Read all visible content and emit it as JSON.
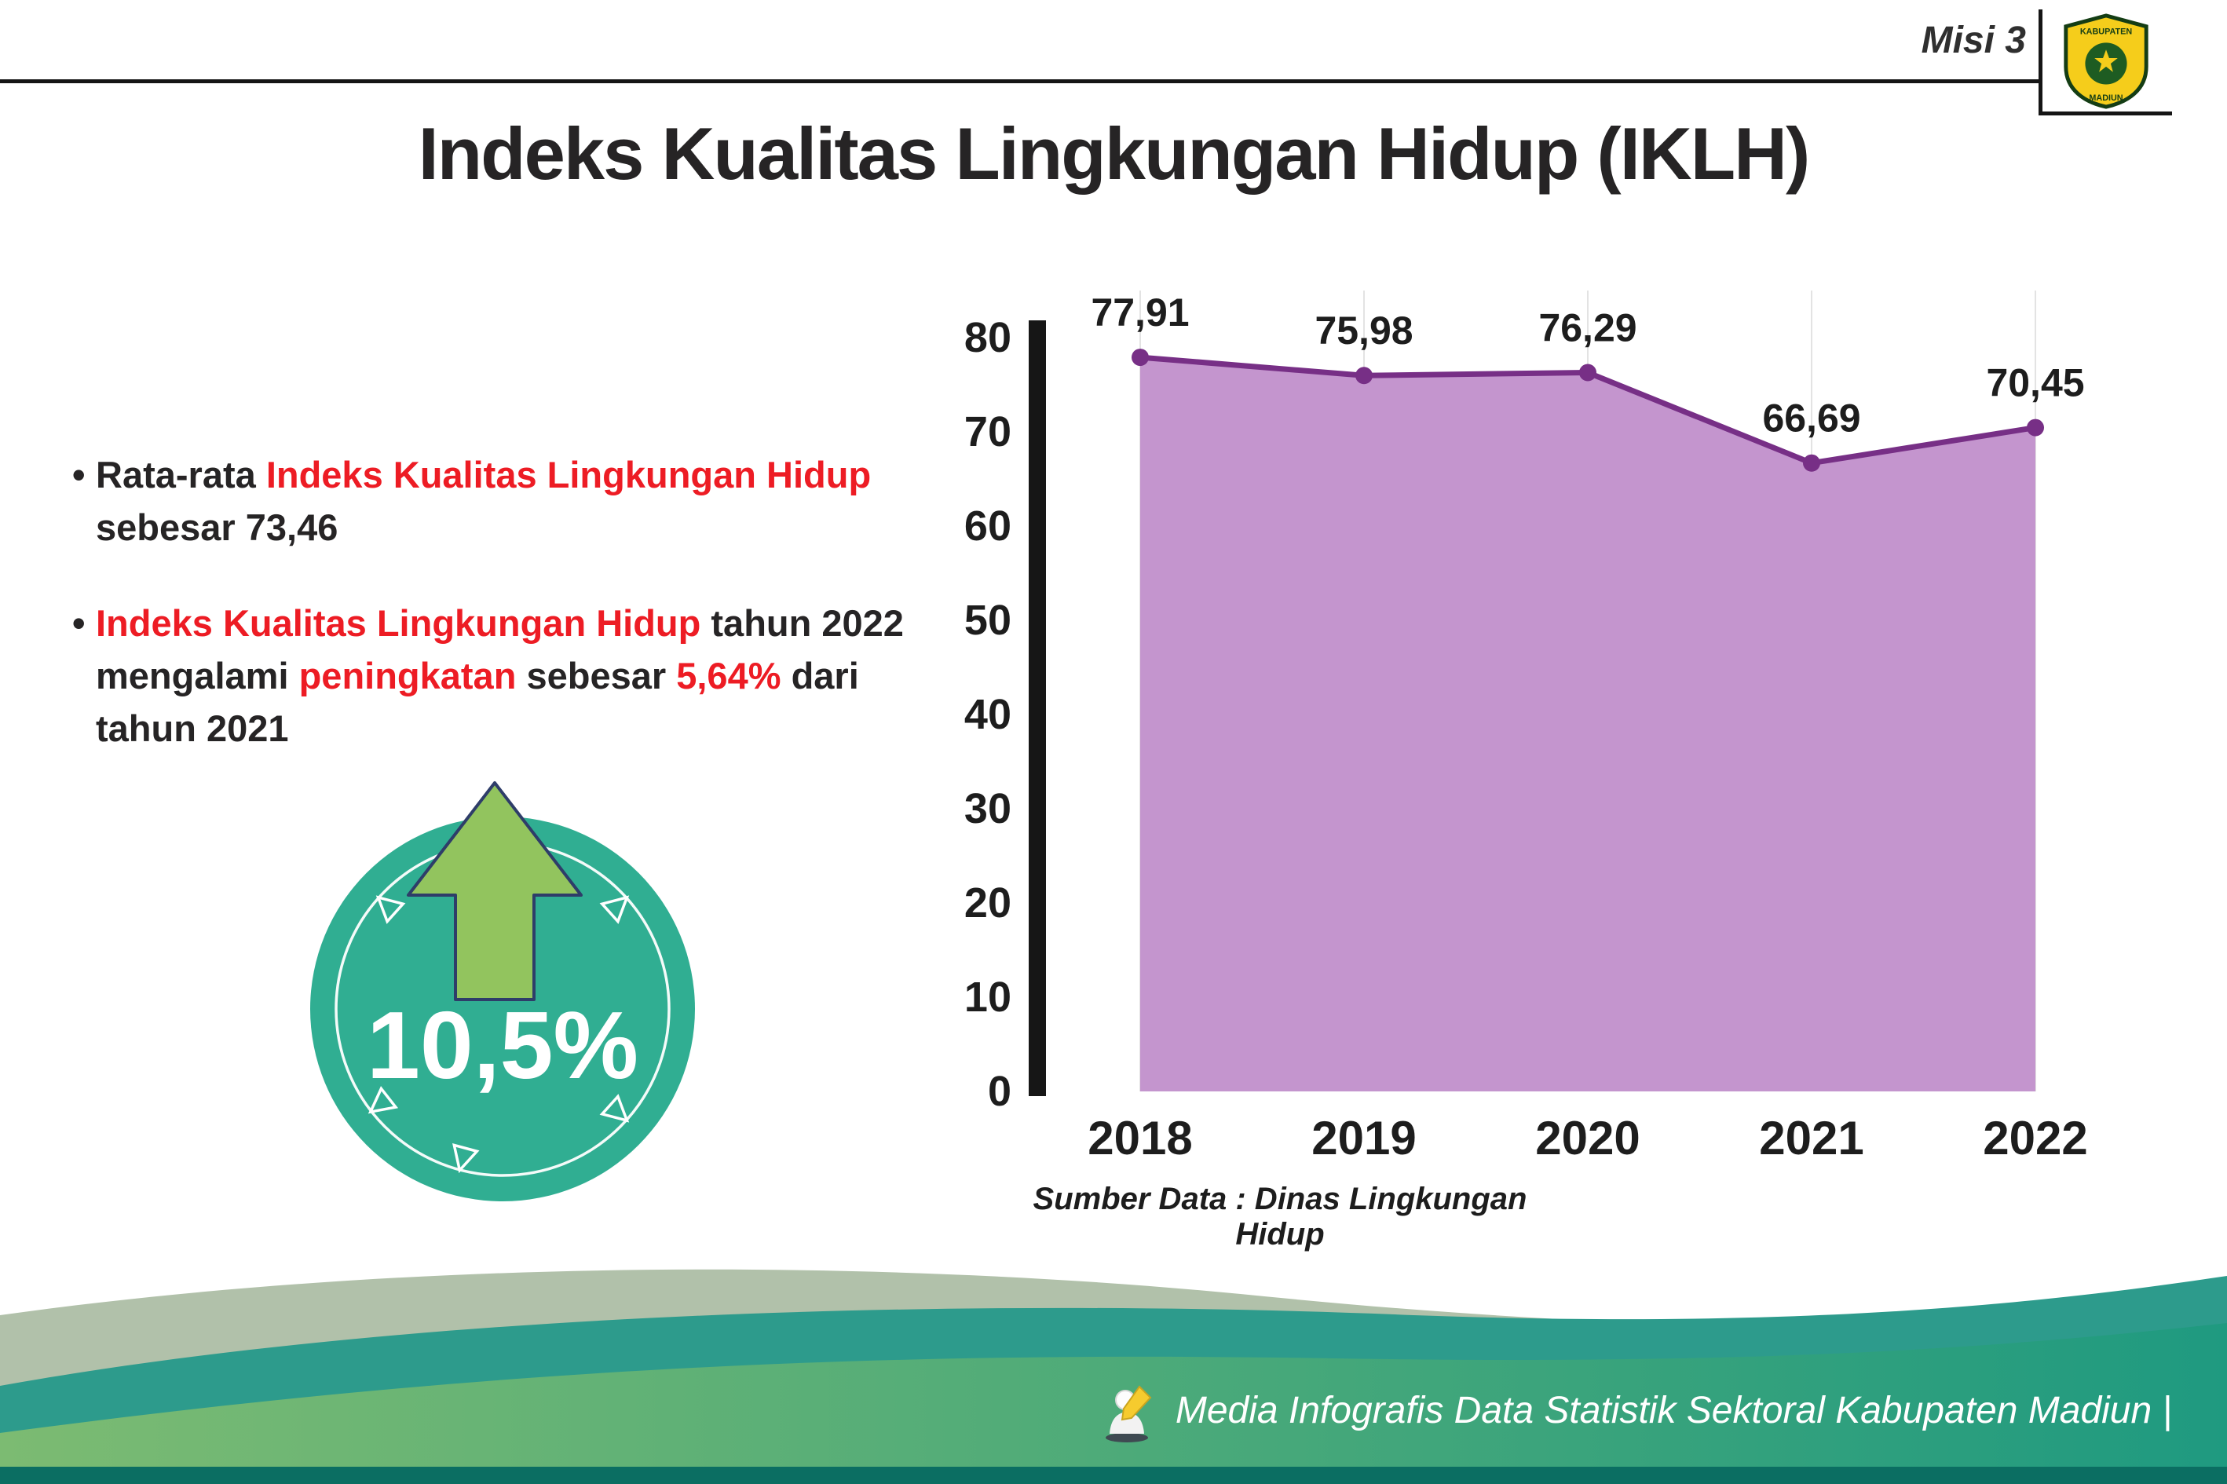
{
  "page": {
    "misi_label": "Misi 3",
    "title": "Indeks Kualitas Lingkungan Hidup (IKLH)",
    "bullet_char": "•"
  },
  "logo": {
    "name": "Lambang Kabupaten Madiun",
    "top_text": "KABUPATEN",
    "bottom_text": "MADIUN"
  },
  "bullets": [
    {
      "parts": [
        {
          "text": "Rata-rata ",
          "color": "dark"
        },
        {
          "text": "Indeks Kualitas Lingkungan Hidup",
          "color": "red"
        },
        {
          "text": " sebesar 73,46",
          "color": "dark"
        }
      ]
    },
    {
      "parts": [
        {
          "text": "Indeks Kualitas Lingkungan Hidup",
          "color": "red"
        },
        {
          "text": " tahun 2022 mengalami ",
          "color": "dark"
        },
        {
          "text": "peningkatan",
          "color": "red"
        },
        {
          "text": " sebesar ",
          "color": "dark"
        },
        {
          "text": "5,64%",
          "color": "red"
        },
        {
          "text": " dari tahun 2021",
          "color": "dark"
        }
      ]
    }
  ],
  "badge": {
    "value": "10,5%"
  },
  "chart_data": {
    "type": "area",
    "title": "Indeks Kualitas Lingkungan Hidup (IKLH)",
    "categories": [
      "2018",
      "2019",
      "2020",
      "2021",
      "2022"
    ],
    "series": [
      {
        "name": "IKLH",
        "values": [
          77.91,
          75.98,
          76.29,
          66.69,
          70.45
        ]
      }
    ],
    "point_labels": [
      "77,91",
      "75,98",
      "76,29",
      "66,69",
      "70,45"
    ],
    "ylim": [
      0,
      80
    ],
    "yticks": [
      0,
      10,
      20,
      30,
      40,
      50,
      60,
      70,
      80
    ],
    "grid": "vertical-light",
    "legend": "none",
    "fill_color": "#c495ce",
    "line_color": "#772f86",
    "marker_color": "#772f86"
  },
  "source_note": "Sumber Data : Dinas Lingkungan Hidup",
  "footer": {
    "caption": "Media Infografis Data Statistik Sektoral Kabupaten Madiun |"
  },
  "colors": {
    "accent_red": "#ed1c24",
    "badge_teal": "#30ae92",
    "arrow_green": "#92c45e",
    "area_fill": "#c495ce",
    "area_line": "#772f86"
  }
}
